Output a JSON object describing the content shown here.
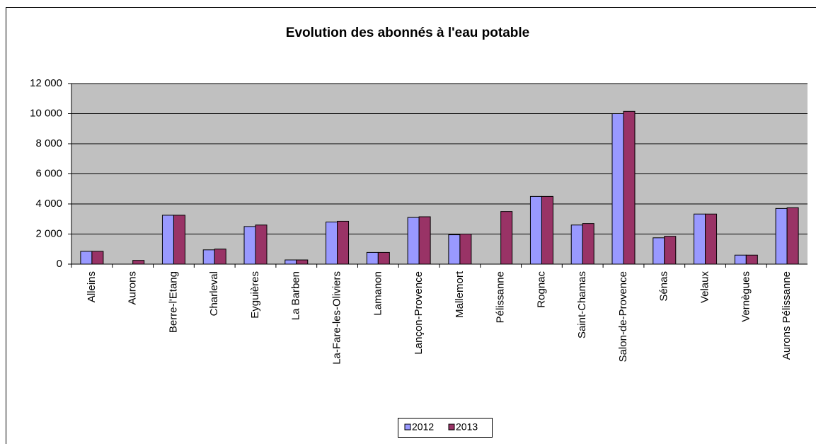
{
  "chart_data": {
    "type": "bar",
    "title": "Evolution des abonnés à l'eau potable",
    "categories": [
      "Alleins",
      "Aurons",
      "Berre-l'Etang",
      "Charleval",
      "Eyguières",
      "La Barben",
      "La-Fare-les-Oliviers",
      "Lamanon",
      "Lançon-Provence",
      "Mallemort",
      "Pélissanne",
      "Rognac",
      "Saint-Chamas",
      "Salon-de-Provence",
      "Sénas",
      "Velaux",
      "Vernègues",
      "Aurons Pélissanne"
    ],
    "series": [
      {
        "name": "2012",
        "color": "#9999ff",
        "values": [
          850,
          null,
          3250,
          950,
          2500,
          280,
          2800,
          780,
          3100,
          1950,
          null,
          4500,
          2600,
          10000,
          1750,
          3330,
          600,
          3700
        ]
      },
      {
        "name": "2013",
        "color": "#993366",
        "values": [
          850,
          250,
          3250,
          1000,
          2600,
          280,
          2850,
          780,
          3150,
          2000,
          3500,
          4500,
          2700,
          10150,
          1850,
          3330,
          600,
          3750
        ]
      }
    ],
    "ylim": [
      0,
      12000
    ],
    "yticks": [
      0,
      {
        "value": 2000,
        "label": "2 000"
      },
      {
        "value": 4000,
        "label": "4 000"
      },
      {
        "value": 6000,
        "label": "6 000"
      },
      {
        "value": 8000,
        "label": "8 000"
      },
      {
        "value": 10000,
        "label": "10 000"
      },
      {
        "value": 12000,
        "label": "12 000"
      }
    ],
    "grid": true,
    "legend": "bottom"
  }
}
